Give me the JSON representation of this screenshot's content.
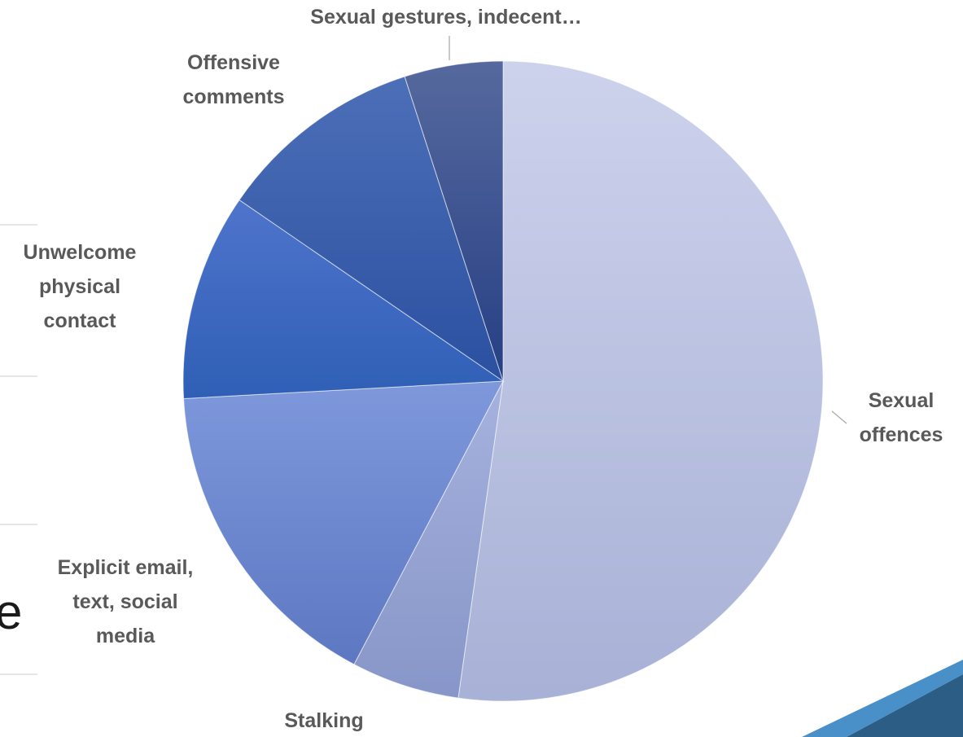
{
  "slide": {
    "partial_glyph": "e",
    "colors": {
      "ribbon_light": "#4a90c8",
      "ribbon_dark": "#2c5d85",
      "rule": "#e6e6e6"
    }
  },
  "chart_data": {
    "type": "pie",
    "title": "",
    "start_angle_deg": 0,
    "direction": "clockwise",
    "slices": [
      {
        "label": "Sexual offences",
        "value": 52.5,
        "color_top": "#cdd2ec",
        "color_bottom": "#a8b1d6"
      },
      {
        "label": "Stalking",
        "value": 5.5,
        "color_top": "#a6b2de",
        "color_bottom": "#8796c8"
      },
      {
        "label": "Explicit email, text, social media",
        "value": 16.5,
        "color_top": "#7f98dc",
        "color_bottom": "#5d78c2"
      },
      {
        "label": "Unwelcome physical contact",
        "value": 10.5,
        "color_top": "#4f74cc",
        "color_bottom": "#2f5fb6"
      },
      {
        "label": "Offensive comments",
        "value": 10.5,
        "color_top": "#4d6fb8",
        "color_bottom": "#2b50a0"
      },
      {
        "label": "Sexual gestures, indecent…",
        "value": 5.0,
        "color_top": "#56699e",
        "color_bottom": "#263f84"
      }
    ],
    "legend": "none"
  }
}
